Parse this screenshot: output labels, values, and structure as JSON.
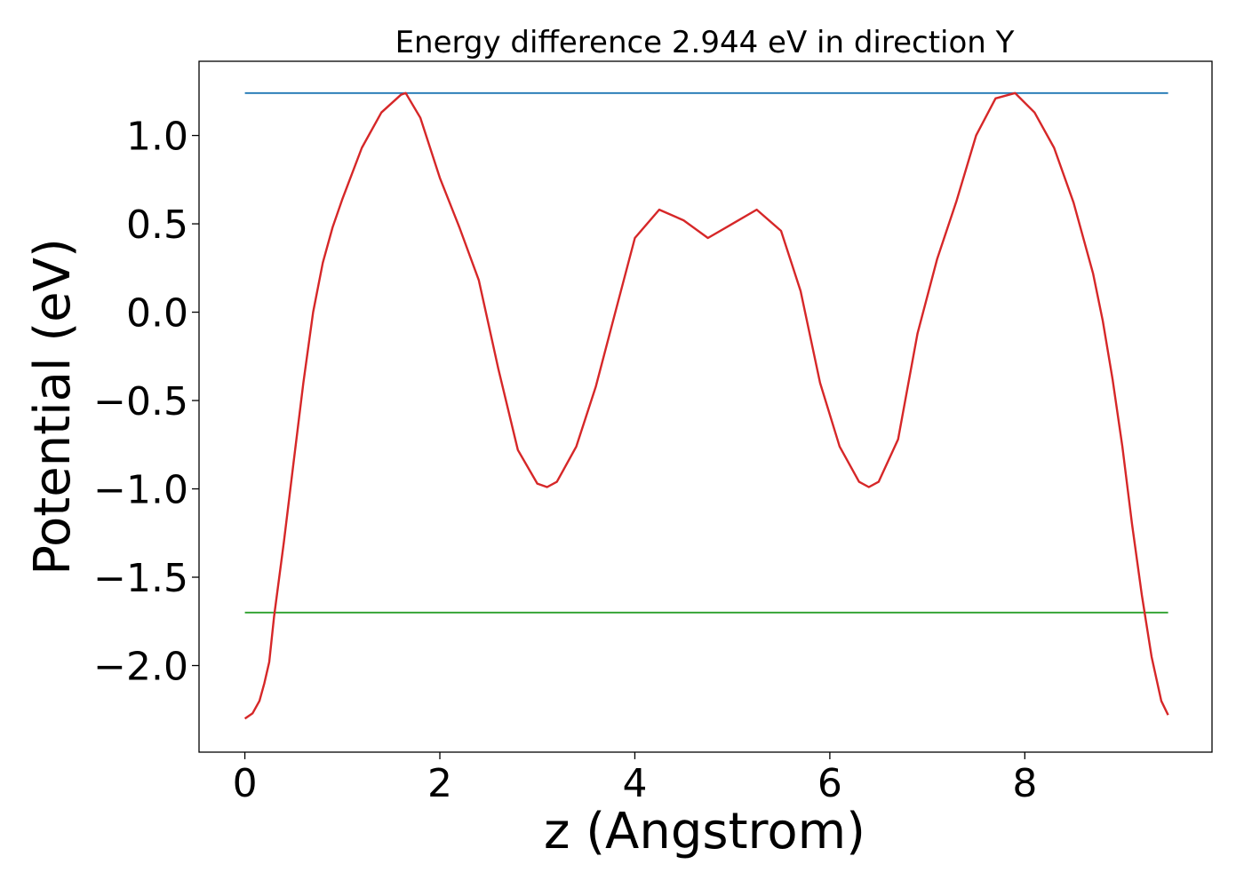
{
  "chart_data": {
    "type": "line",
    "title": "Energy difference 2.944 eV in direction Y",
    "xlabel": "z (Angstrom)",
    "ylabel": "Potential (eV)",
    "xlim": [
      -0.47,
      9.92
    ],
    "ylim": [
      -2.49,
      1.42
    ],
    "grid": false,
    "xticks": [
      0,
      2,
      4,
      6,
      8
    ],
    "xtick_labels": [
      "0",
      "2",
      "4",
      "6",
      "8"
    ],
    "yticks": [
      -2.0,
      -1.5,
      -1.0,
      -0.5,
      0.0,
      0.5,
      1.0
    ],
    "ytick_labels": [
      "−2.0",
      "−1.5",
      "−1.0",
      "−0.5",
      "0.0",
      "0.5",
      "1.0"
    ],
    "series": [
      {
        "color": "#d62728",
        "x": [
          0,
          0.08,
          0.15,
          0.2,
          0.25,
          0.3,
          0.4,
          0.5,
          0.6,
          0.7,
          0.8,
          0.9,
          1.0,
          1.2,
          1.4,
          1.6,
          1.65,
          1.8,
          2.0,
          2.2,
          2.4,
          2.6,
          2.8,
          3.0,
          3.1,
          3.2,
          3.4,
          3.6,
          3.8,
          4.0,
          4.25,
          4.5,
          4.75,
          5.0,
          5.25,
          5.5,
          5.7,
          5.9,
          6.1,
          6.3,
          6.4,
          6.5,
          6.7,
          6.9,
          7.1,
          7.3,
          7.5,
          7.7,
          7.9,
          8.1,
          8.3,
          8.5,
          8.7,
          8.8,
          8.9,
          9.0,
          9.1,
          9.2,
          9.3,
          9.4,
          9.47
        ],
        "y": [
          -2.3,
          -2.27,
          -2.2,
          -2.1,
          -1.98,
          -1.72,
          -1.3,
          -0.85,
          -0.4,
          0.0,
          0.28,
          0.48,
          0.64,
          0.93,
          1.13,
          1.23,
          1.24,
          1.1,
          0.76,
          0.48,
          0.18,
          -0.32,
          -0.78,
          -0.97,
          -0.99,
          -0.96,
          -0.76,
          -0.42,
          0.0,
          0.42,
          0.58,
          0.52,
          0.42,
          0.5,
          0.58,
          0.46,
          0.12,
          -0.4,
          -0.76,
          -0.96,
          -0.99,
          -0.96,
          -0.72,
          -0.12,
          0.3,
          0.63,
          1.0,
          1.21,
          1.24,
          1.13,
          0.93,
          0.62,
          0.22,
          -0.05,
          -0.38,
          -0.76,
          -1.2,
          -1.6,
          -1.95,
          -2.2,
          -2.28
        ]
      },
      {
        "color": "#1f77b4",
        "x": [
          0,
          9.47
        ],
        "y": [
          1.24,
          1.24
        ]
      },
      {
        "color": "#2ca02c",
        "x": [
          0,
          9.47
        ],
        "y": [
          -1.7,
          -1.7
        ]
      }
    ]
  }
}
